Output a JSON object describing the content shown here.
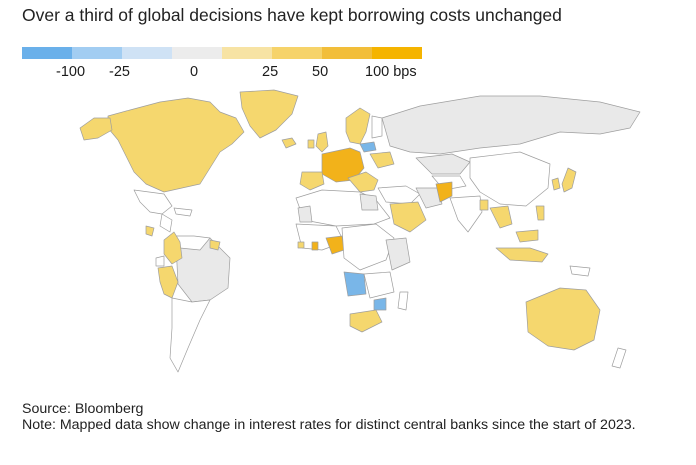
{
  "title": "Over a third of global decisions have kept borrowing costs unchanged",
  "legend": {
    "colors": [
      "#6ab0ea",
      "#a2cdf2",
      "#cfe2f5",
      "#ececec",
      "#f7e3a4",
      "#f6d36a",
      "#f2be3a",
      "#f5b400"
    ],
    "labels": [
      "-100",
      "-25",
      "0",
      "25",
      "50",
      "100 bps"
    ]
  },
  "palette": {
    "land_default": "#ffffff",
    "no_change": "#e9e9e9",
    "hike_small": "#f5d76e",
    "hike_large": "#f2b21a",
    "cut": "#79b6e8",
    "border": "#9e9e9e"
  },
  "footer": {
    "source": "Source: Bloomberg",
    "note": "Note: Mapped data show change in interest rates for distinct central banks since the start of 2023."
  }
}
